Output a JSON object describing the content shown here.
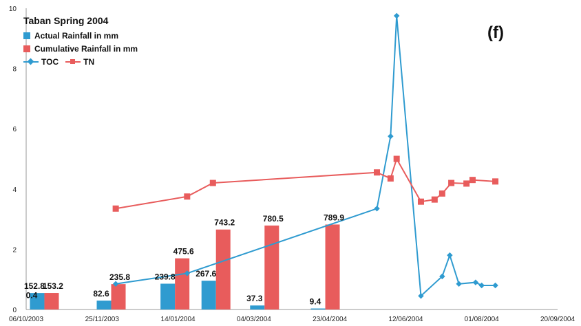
{
  "chart_data": {
    "type": "bar+line",
    "title": "Taban Spring 2004",
    "panel_label": "(f)",
    "x_tick_labels": [
      "06/10/2003",
      "25/11/2003",
      "14/01/2004",
      "04/03/2004",
      "23/04/2004",
      "12/06/2004",
      "01/08/2004",
      "20/09/2004"
    ],
    "xlim": [
      "2003-10-06",
      "2004-09-20"
    ],
    "ylim": [
      0,
      10
    ],
    "y_ticks": [
      0,
      2,
      4,
      6,
      8,
      10
    ],
    "legend": [
      "Actual Rainfall in mm",
      "Cumulative Rainfall in mm",
      "TOC",
      "TN"
    ],
    "rainfall_bars": {
      "scale_note": "bar heights drawn as mm/280 on the 0-10 axis",
      "x": [
        "2003-10-18",
        "2003-12-01",
        "2004-01-12",
        "2004-02-08",
        "2004-03-11",
        "2004-04-20"
      ],
      "actual": [
        152.8,
        82.6,
        239.8,
        267.6,
        37.3,
        9.4
      ],
      "actual_labels": [
        "152.8",
        "82.6",
        "239.8",
        "267.6",
        "37.3",
        "9.4"
      ],
      "cumulative": [
        153.2,
        235.8,
        475.6,
        743.2,
        780.5,
        789.9
      ],
      "cumulative_labels": [
        "153.2",
        "235.8",
        "475.6",
        "743.2",
        "780.5",
        "789.9"
      ],
      "extra_labels": [
        {
          "text": "0.4",
          "x": "2003-10-06",
          "y": 0.4
        }
      ]
    },
    "series": [
      {
        "name": "TOC",
        "color": "#2f9bd0",
        "marker": "diamond",
        "x": [
          "2003-12-04",
          "2004-01-20",
          "2004-05-24",
          "2004-06-02",
          "2004-06-06",
          "2004-06-22",
          "2004-07-06",
          "2004-07-11",
          "2004-07-17",
          "2004-07-28",
          "2004-08-01",
          "2004-08-10"
        ],
        "y": [
          0.85,
          1.2,
          3.35,
          5.75,
          9.75,
          0.45,
          1.1,
          1.8,
          0.85,
          0.9,
          0.8,
          0.8
        ]
      },
      {
        "name": "TN",
        "color": "#e85c5c",
        "marker": "square",
        "x": [
          "2003-12-04",
          "2004-01-20",
          "2004-02-06",
          "2004-05-24",
          "2004-06-02",
          "2004-06-06",
          "2004-06-22",
          "2004-07-01",
          "2004-07-06",
          "2004-07-12",
          "2004-07-22",
          "2004-07-26",
          "2004-08-10"
        ],
        "y": [
          3.35,
          3.75,
          4.2,
          4.55,
          4.35,
          5.0,
          3.58,
          3.65,
          3.85,
          4.2,
          4.18,
          4.3,
          4.25
        ]
      }
    ]
  }
}
